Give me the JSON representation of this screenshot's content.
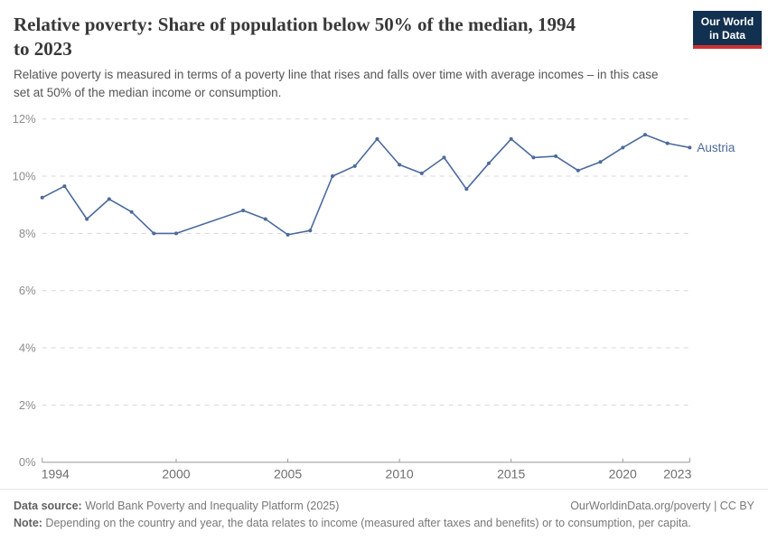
{
  "header": {
    "title": "Relative poverty: Share of population below 50% of the median, 1994\nto 2023",
    "logo": {
      "line1": "Our World",
      "line2": "in Data",
      "bg_color": "#12304f",
      "bar_color": "#cc3232"
    }
  },
  "subtitle": "Relative poverty is measured in terms of a poverty line that rises and falls over time with average incomes – in this case\nset at 50% of the median income or consumption.",
  "chart_data": {
    "type": "line",
    "title": "Relative poverty: Share of population below 50% of the median, 1994 to 2023",
    "xlabel": "",
    "ylabel": "",
    "xlim": [
      1994,
      2023
    ],
    "ylim": [
      0,
      12
    ],
    "x_ticks": [
      1994,
      2000,
      2005,
      2010,
      2015,
      2020,
      2023
    ],
    "y_ticks": [
      0,
      2,
      4,
      6,
      8,
      10,
      12
    ],
    "y_tick_suffix": "%",
    "grid": "horizontal-dashed",
    "legend_position": "end-of-line-label",
    "data_gap_years": [
      2001,
      2002
    ],
    "series": [
      {
        "name": "Austria",
        "color": "#4c6a9c",
        "points": [
          [
            1994,
            9.25
          ],
          [
            1995,
            9.65
          ],
          [
            1996,
            8.5
          ],
          [
            1997,
            9.2
          ],
          [
            1998,
            8.75
          ],
          [
            1999,
            8.0
          ],
          [
            2000,
            8.0
          ],
          [
            2003,
            8.8
          ],
          [
            2004,
            8.5
          ],
          [
            2005,
            7.95
          ],
          [
            2006,
            8.1
          ],
          [
            2007,
            10.0
          ],
          [
            2008,
            10.35
          ],
          [
            2009,
            11.3
          ],
          [
            2010,
            10.4
          ],
          [
            2011,
            10.1
          ],
          [
            2012,
            10.65
          ],
          [
            2013,
            9.55
          ],
          [
            2014,
            10.45
          ],
          [
            2015,
            11.3
          ],
          [
            2016,
            10.65
          ],
          [
            2017,
            10.7
          ],
          [
            2018,
            10.2
          ],
          [
            2019,
            10.5
          ],
          [
            2020,
            11.0
          ],
          [
            2021,
            11.45
          ],
          [
            2022,
            11.15
          ],
          [
            2023,
            11.0
          ]
        ]
      }
    ]
  },
  "footer": {
    "source_label": "Data source:",
    "source_text": " World Bank Poverty and Inequality Platform (2025)",
    "attribution": "OurWorldinData.org/poverty | CC BY",
    "note_label": "Note:",
    "note_text": " Depending on the country and year, the data relates to income (measured after taxes and benefits) or to consumption, per capita."
  },
  "colors": {
    "line": "#4c6a9c",
    "gridline": "#d8d8d8",
    "axis": "#9a9a9a",
    "title_text": "#383838",
    "subtitle_text": "#555555",
    "footer_text": "#787878"
  }
}
